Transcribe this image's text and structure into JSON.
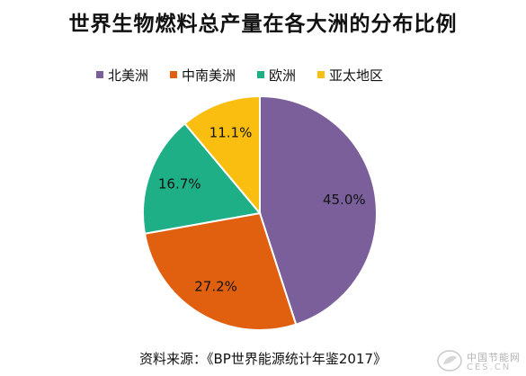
{
  "chart_data": {
    "type": "pie",
    "title": "世界生物燃料总产量在各大洲的分布比例",
    "start_angle_deg": 0,
    "direction": "clockwise",
    "legend_position": "top",
    "series": [
      {
        "name": "北美洲",
        "value": 45.0,
        "label": "45.0%",
        "color": "#7A5F9A"
      },
      {
        "name": "中南美洲",
        "value": 27.2,
        "label": "27.2%",
        "color": "#E06010"
      },
      {
        "name": "欧洲",
        "value": 16.7,
        "label": "16.7%",
        "color": "#1FAF86"
      },
      {
        "name": "亚太地区",
        "value": 11.1,
        "label": "11.1%",
        "color": "#F9BE10"
      }
    ]
  },
  "source_note": "资料来源：《BP世界能源统计年鉴2017》",
  "watermark": {
    "cn": "中国节能网",
    "en": "CES.CN",
    "icon": "energy-leaf-logo"
  }
}
